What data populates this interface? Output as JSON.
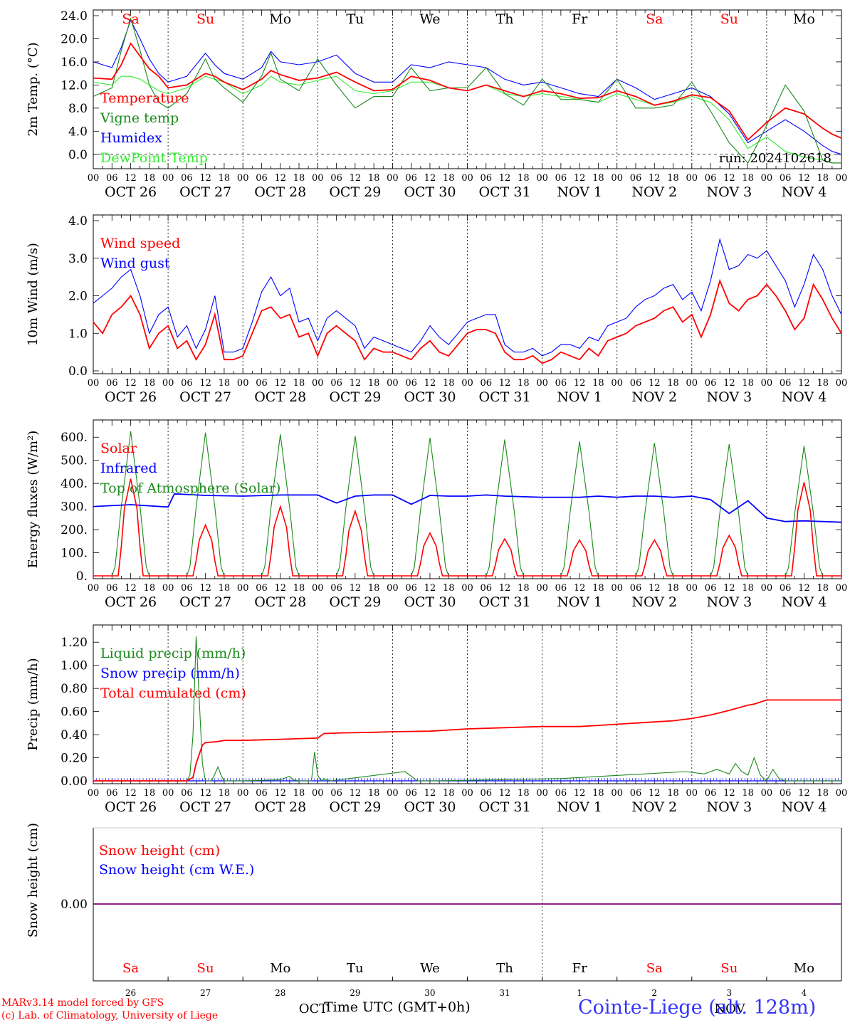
{
  "run_label": "run: 2024102618",
  "xlabel": "Time UTC (GMT+0h)",
  "credits": [
    "MARv3.14 model forced by GFS",
    "(c) Lab. of Climatology, University of Liege"
  ],
  "location": "Cointe-Liege (alt. 128m)",
  "month_labels": [
    "OCT",
    "NOV"
  ],
  "hour_ticks": [
    "00",
    "06",
    "12",
    "18"
  ],
  "days": [
    {
      "dow": "Sa",
      "date": "OCT 26",
      "num": "26",
      "weekend": true
    },
    {
      "dow": "Su",
      "date": "OCT 27",
      "num": "27",
      "weekend": true
    },
    {
      "dow": "Mo",
      "date": "OCT 28",
      "num": "28",
      "weekend": false
    },
    {
      "dow": "Tu",
      "date": "OCT 29",
      "num": "29",
      "weekend": false
    },
    {
      "dow": "We",
      "date": "OCT 30",
      "num": "30",
      "weekend": false
    },
    {
      "dow": "Th",
      "date": "OCT 31",
      "num": "31",
      "weekend": false
    },
    {
      "dow": "Fr",
      "date": "NOV  1",
      "num": "1",
      "weekend": false
    },
    {
      "dow": "Sa",
      "date": "NOV  2",
      "num": "2",
      "weekend": true
    },
    {
      "dow": "Su",
      "date": "NOV  3",
      "num": "3",
      "weekend": true
    },
    {
      "dow": "Mo",
      "date": "NOV  4",
      "num": "4",
      "weekend": false
    }
  ],
  "colors": {
    "red": "#ff0000",
    "green": "#1a8a1a",
    "blue": "#0000ff",
    "lightgreen": "#33ee33",
    "purple": "#800080",
    "axis": "#000000"
  },
  "chart_data": [
    {
      "type": "line",
      "ylabel": "2m Temp. (°C)",
      "ylim": [
        -2,
        24
      ],
      "yticks": [
        "24.0",
        "20.0",
        "16.0",
        "12.0",
        "8.0",
        "4.0",
        "0.0"
      ],
      "ytick_values": [
        24,
        20,
        16,
        12,
        8,
        4,
        0
      ],
      "zero_line": true,
      "x_hours": [
        0,
        6,
        9,
        12,
        15,
        18,
        21,
        24,
        30,
        36,
        39,
        42,
        48,
        54,
        57,
        60,
        66,
        72,
        78,
        84,
        90,
        96,
        102,
        108,
        114,
        120,
        126,
        132,
        138,
        144,
        150,
        156,
        162,
        168,
        174,
        180,
        186,
        192,
        198,
        204,
        210,
        216,
        222,
        228,
        234,
        237,
        240
      ],
      "series": [
        {
          "name": "Temperature",
          "color": "#ff0000",
          "values": [
            13.2,
            13.0,
            15.5,
            19.2,
            17.0,
            14.8,
            13.5,
            11.5,
            12.0,
            14.0,
            13.5,
            12.5,
            11.2,
            13.0,
            14.5,
            13.8,
            12.8,
            13.2,
            14.2,
            12.5,
            11.0,
            11.2,
            13.5,
            12.8,
            11.5,
            11.0,
            12.0,
            11.0,
            10.0,
            11.0,
            10.5,
            9.7,
            9.8,
            11.0,
            10.0,
            8.5,
            9.2,
            10.3,
            9.8,
            7.5,
            2.5,
            5.5,
            8.0,
            7.0,
            4.5,
            3.5,
            2.8
          ]
        },
        {
          "name": "Vigne temp",
          "color": "#1a8a1a",
          "values": [
            10.0,
            11.5,
            18.0,
            23.5,
            18.0,
            12.0,
            9.0,
            8.0,
            10.5,
            16.5,
            13.0,
            11.5,
            9.0,
            13.5,
            17.5,
            13.0,
            11.0,
            16.5,
            12.0,
            8.0,
            10.0,
            10.0,
            15.0,
            11.0,
            11.5,
            11.5,
            15.0,
            10.5,
            8.5,
            13.0,
            9.5,
            9.5,
            9.0,
            13.0,
            8.0,
            8.0,
            8.5,
            12.5,
            7.5,
            2.0,
            -1.5,
            5.0,
            12.0,
            7.5,
            -1.0,
            -1.5,
            -1.5
          ]
        },
        {
          "name": "Humidex",
          "color": "#0000ff",
          "values": [
            16.0,
            15.0,
            18.5,
            23.2,
            20.0,
            16.5,
            14.0,
            12.5,
            13.5,
            17.5,
            15.5,
            14.0,
            13.0,
            15.0,
            17.8,
            16.0,
            15.5,
            16.0,
            17.2,
            14.0,
            12.5,
            12.5,
            15.5,
            15.0,
            16.0,
            15.5,
            15.0,
            13.0,
            12.0,
            12.5,
            11.5,
            10.5,
            10.0,
            13.0,
            11.5,
            9.5,
            10.5,
            11.5,
            10.0,
            7.0,
            2.0,
            4.0,
            6.0,
            4.0,
            1.5,
            0.5,
            0.0
          ]
        },
        {
          "name": "DewPoint Temp",
          "color": "#33ee33",
          "values": [
            12.5,
            12.0,
            13.5,
            13.5,
            13.0,
            12.0,
            11.0,
            10.5,
            11.5,
            13.5,
            13.0,
            12.5,
            10.5,
            12.0,
            13.5,
            12.5,
            12.0,
            12.8,
            13.5,
            11.0,
            10.5,
            11.0,
            12.5,
            12.5,
            11.5,
            11.0,
            12.0,
            10.5,
            10.0,
            10.5,
            10.0,
            9.5,
            9.0,
            10.5,
            9.5,
            8.5,
            9.0,
            10.0,
            9.0,
            6.0,
            1.0,
            3.0,
            0.5,
            -0.5,
            -1.0,
            -1.5,
            -1.5
          ]
        }
      ]
    },
    {
      "type": "line",
      "ylabel": "10m Wind (m/s)",
      "ylim": [
        0,
        4
      ],
      "yticks": [
        "4.0",
        "3.0",
        "2.0",
        "1.0",
        "0.0"
      ],
      "ytick_values": [
        4,
        3,
        2,
        1,
        0
      ],
      "x_hours": [
        0,
        3,
        6,
        9,
        12,
        15,
        18,
        21,
        24,
        27,
        30,
        33,
        36,
        39,
        42,
        45,
        48,
        51,
        54,
        57,
        60,
        63,
        66,
        69,
        72,
        75,
        78,
        81,
        84,
        87,
        90,
        93,
        96,
        99,
        102,
        105,
        108,
        111,
        114,
        117,
        120,
        123,
        126,
        129,
        132,
        135,
        138,
        141,
        144,
        147,
        150,
        153,
        156,
        159,
        162,
        165,
        168,
        171,
        174,
        177,
        180,
        183,
        186,
        189,
        192,
        195,
        198,
        201,
        204,
        207,
        210,
        213,
        216,
        219,
        222,
        225,
        228,
        231,
        234,
        237,
        240
      ],
      "series": [
        {
          "name": "Wind speed",
          "color": "#ff0000",
          "values": [
            1.3,
            1.0,
            1.5,
            1.7,
            2.0,
            1.5,
            0.6,
            1.0,
            1.2,
            0.6,
            0.8,
            0.3,
            0.7,
            1.5,
            0.3,
            0.3,
            0.4,
            1.0,
            1.6,
            1.7,
            1.4,
            1.5,
            0.9,
            1.0,
            0.4,
            1.0,
            1.2,
            1.0,
            0.8,
            0.3,
            0.6,
            0.5,
            0.5,
            0.4,
            0.3,
            0.6,
            0.8,
            0.5,
            0.4,
            0.7,
            1.0,
            1.1,
            1.1,
            1.0,
            0.5,
            0.3,
            0.3,
            0.4,
            0.2,
            0.3,
            0.5,
            0.4,
            0.3,
            0.6,
            0.4,
            0.8,
            0.9,
            1.0,
            1.2,
            1.3,
            1.4,
            1.6,
            1.7,
            1.3,
            1.5,
            0.9,
            1.5,
            2.4,
            1.8,
            1.6,
            1.9,
            2.0,
            2.3,
            2.0,
            1.6,
            1.1,
            1.4,
            2.3,
            1.9,
            1.4,
            1.0
          ]
        },
        {
          "name": "Wind gust",
          "color": "#0000ff",
          "values": [
            1.8,
            2.0,
            2.2,
            2.5,
            2.7,
            2.0,
            1.0,
            1.5,
            1.7,
            0.9,
            1.2,
            0.6,
            1.1,
            2.0,
            0.5,
            0.5,
            0.6,
            1.3,
            2.1,
            2.5,
            2.0,
            2.2,
            1.3,
            1.4,
            0.8,
            1.4,
            1.6,
            1.4,
            1.2,
            0.6,
            0.9,
            0.8,
            0.7,
            0.6,
            0.5,
            0.8,
            1.2,
            0.9,
            0.7,
            1.0,
            1.3,
            1.4,
            1.5,
            1.5,
            0.7,
            0.5,
            0.5,
            0.6,
            0.4,
            0.5,
            0.7,
            0.7,
            0.6,
            0.9,
            0.8,
            1.2,
            1.3,
            1.4,
            1.7,
            1.9,
            2.0,
            2.2,
            2.3,
            1.9,
            2.1,
            1.6,
            2.4,
            3.5,
            2.7,
            2.8,
            3.1,
            3.0,
            3.2,
            2.8,
            2.4,
            1.7,
            2.3,
            3.1,
            2.7,
            2.0,
            1.5
          ]
        }
      ]
    },
    {
      "type": "line",
      "ylabel": "Energy fluxes (W/m²)",
      "ylim": [
        0,
        650
      ],
      "yticks": [
        "600.",
        "500.",
        "400.",
        "300.",
        "200.",
        "100.",
        "0."
      ],
      "ytick_values": [
        600,
        500,
        400,
        300,
        200,
        100,
        0
      ],
      "diurnal": {
        "day_peaks": [
          {
            "toa": 625,
            "solar": 420
          },
          {
            "toa": 620,
            "solar": 220
          },
          {
            "toa": 612,
            "solar": 300
          },
          {
            "toa": 605,
            "solar": 280
          },
          {
            "toa": 598,
            "solar": 185
          },
          {
            "toa": 590,
            "solar": 160
          },
          {
            "toa": 582,
            "solar": 155
          },
          {
            "toa": 575,
            "solar": 155
          },
          {
            "toa": 570,
            "solar": 175
          },
          {
            "toa": 562,
            "solar": 405
          }
        ]
      },
      "infrared": {
        "x_hours": [
          0,
          12,
          24,
          26,
          36,
          48,
          60,
          72,
          78,
          84,
          90,
          96,
          102,
          108,
          114,
          120,
          126,
          132,
          144,
          150,
          156,
          162,
          168,
          174,
          180,
          186,
          192,
          198,
          204,
          210,
          216,
          222,
          228,
          234,
          240
        ],
        "values": [
          300,
          308,
          298,
          355,
          348,
          345,
          350,
          350,
          315,
          345,
          350,
          350,
          310,
          348,
          345,
          345,
          350,
          345,
          340,
          340,
          340,
          345,
          340,
          345,
          345,
          340,
          345,
          330,
          270,
          325,
          250,
          235,
          238,
          235,
          232
        ]
      },
      "series": [
        {
          "name": "Solar",
          "color": "#ff0000"
        },
        {
          "name": "Infrared",
          "color": "#0000ff"
        },
        {
          "name": "Top of Atmosphere (Solar)",
          "color": "#1a8a1a"
        }
      ]
    },
    {
      "type": "line",
      "ylabel": "Precip (mm/h)",
      "ylim": [
        0,
        1.3
      ],
      "yticks": [
        "1.20",
        "1.00",
        "0.80",
        "0.60",
        "0.40",
        "0.20",
        "0.00"
      ],
      "ytick_values": [
        1.2,
        1.0,
        0.8,
        0.6,
        0.4,
        0.2,
        0.0
      ],
      "series": [
        {
          "name": "Liquid precip (mm/h)",
          "color": "#1a8a1a",
          "x_hours": [
            0,
            30,
            31,
            32,
            33,
            34,
            35,
            36,
            38,
            40,
            41,
            42,
            46,
            48,
            60,
            63,
            64,
            66,
            70,
            71,
            72,
            73,
            74,
            76,
            100,
            104,
            106,
            107,
            108,
            110,
            150,
            190,
            196,
            200,
            204,
            206,
            208,
            210,
            212,
            214,
            216,
            218,
            220,
            222,
            240
          ],
          "values": [
            0,
            0,
            0.05,
            0.4,
            1.25,
            0.7,
            0.15,
            0,
            0,
            0.12,
            0.05,
            0,
            0,
            0,
            0.01,
            0.04,
            0.01,
            0,
            0,
            0.25,
            0.05,
            0,
            0.02,
            0,
            0.08,
            0,
            0,
            0,
            0,
            0,
            0.02,
            0.08,
            0.06,
            0.1,
            0.06,
            0.15,
            0.08,
            0.05,
            0.2,
            0.05,
            0,
            0.1,
            0.02,
            0,
            0
          ]
        },
        {
          "name": "Snow precip (mm/h)",
          "color": "#0000ff",
          "x_hours": [
            0,
            240
          ],
          "values": [
            0,
            0
          ]
        },
        {
          "name": "Total cumulated (cm)",
          "color": "#ff0000",
          "x_hours": [
            0,
            30,
            32,
            33,
            35,
            36,
            40,
            42,
            48,
            60,
            72,
            73,
            74,
            80,
            90,
            96,
            108,
            120,
            132,
            144,
            150,
            156,
            162,
            168,
            174,
            180,
            186,
            192,
            198,
            204,
            208,
            210,
            212,
            216,
            240
          ],
          "values": [
            0,
            0,
            0.03,
            0.15,
            0.31,
            0.33,
            0.34,
            0.35,
            0.35,
            0.36,
            0.37,
            0.39,
            0.41,
            0.415,
            0.42,
            0.425,
            0.43,
            0.45,
            0.46,
            0.47,
            0.47,
            0.47,
            0.48,
            0.49,
            0.5,
            0.51,
            0.52,
            0.54,
            0.57,
            0.61,
            0.64,
            0.655,
            0.665,
            0.7,
            0.7
          ]
        }
      ]
    },
    {
      "type": "line",
      "ylabel": "Snow height (cm)",
      "ylim": [
        -1,
        1
      ],
      "yticks": [
        "0.00"
      ],
      "ytick_values": [
        0
      ],
      "series": [
        {
          "name": "Snow height (cm)",
          "color": "#ff0000",
          "x_hours": [
            0,
            240
          ],
          "values": [
            0,
            0
          ]
        },
        {
          "name": "Snow height (cm W.E.)",
          "color": "#0000ff",
          "x_hours": [
            0,
            240
          ],
          "values": [
            0,
            0
          ]
        }
      ]
    }
  ]
}
